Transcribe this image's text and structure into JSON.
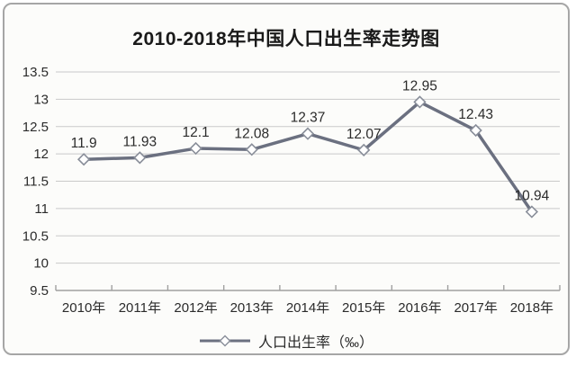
{
  "chart_data": {
    "type": "line",
    "title": "2010-2018年中国人口出生率走势图",
    "categories": [
      "2010年",
      "2011年",
      "2012年",
      "2013年",
      "2014年",
      "2015年",
      "2016年",
      "2017年",
      "2018年"
    ],
    "series": [
      {
        "name": "人口出生率（‰）",
        "values": [
          11.9,
          11.93,
          12.1,
          12.08,
          12.37,
          12.07,
          12.95,
          12.43,
          10.94
        ],
        "point_labels": [
          "11.9",
          "11.93",
          "12.1",
          "12.08",
          "12.37",
          "12.07",
          "12.95",
          "12.43",
          "10.94"
        ]
      }
    ],
    "xlabel": "",
    "ylabel": "",
    "ylim": [
      9.5,
      13.5
    ],
    "y_tick_labels": [
      "9.5",
      "10",
      "10.5",
      "11",
      "11.5",
      "12",
      "12.5",
      "13",
      "13.5"
    ],
    "grid": "horizontal",
    "legend_position": "bottom",
    "marker": "open-diamond",
    "colors": {
      "line": "#6b7080",
      "marker_fill": "#ffffff",
      "marker_stroke": "#898e99",
      "gridline": "#c9c9c9",
      "axis": "#a0a0a0",
      "text": "#2b2b2b"
    }
  }
}
